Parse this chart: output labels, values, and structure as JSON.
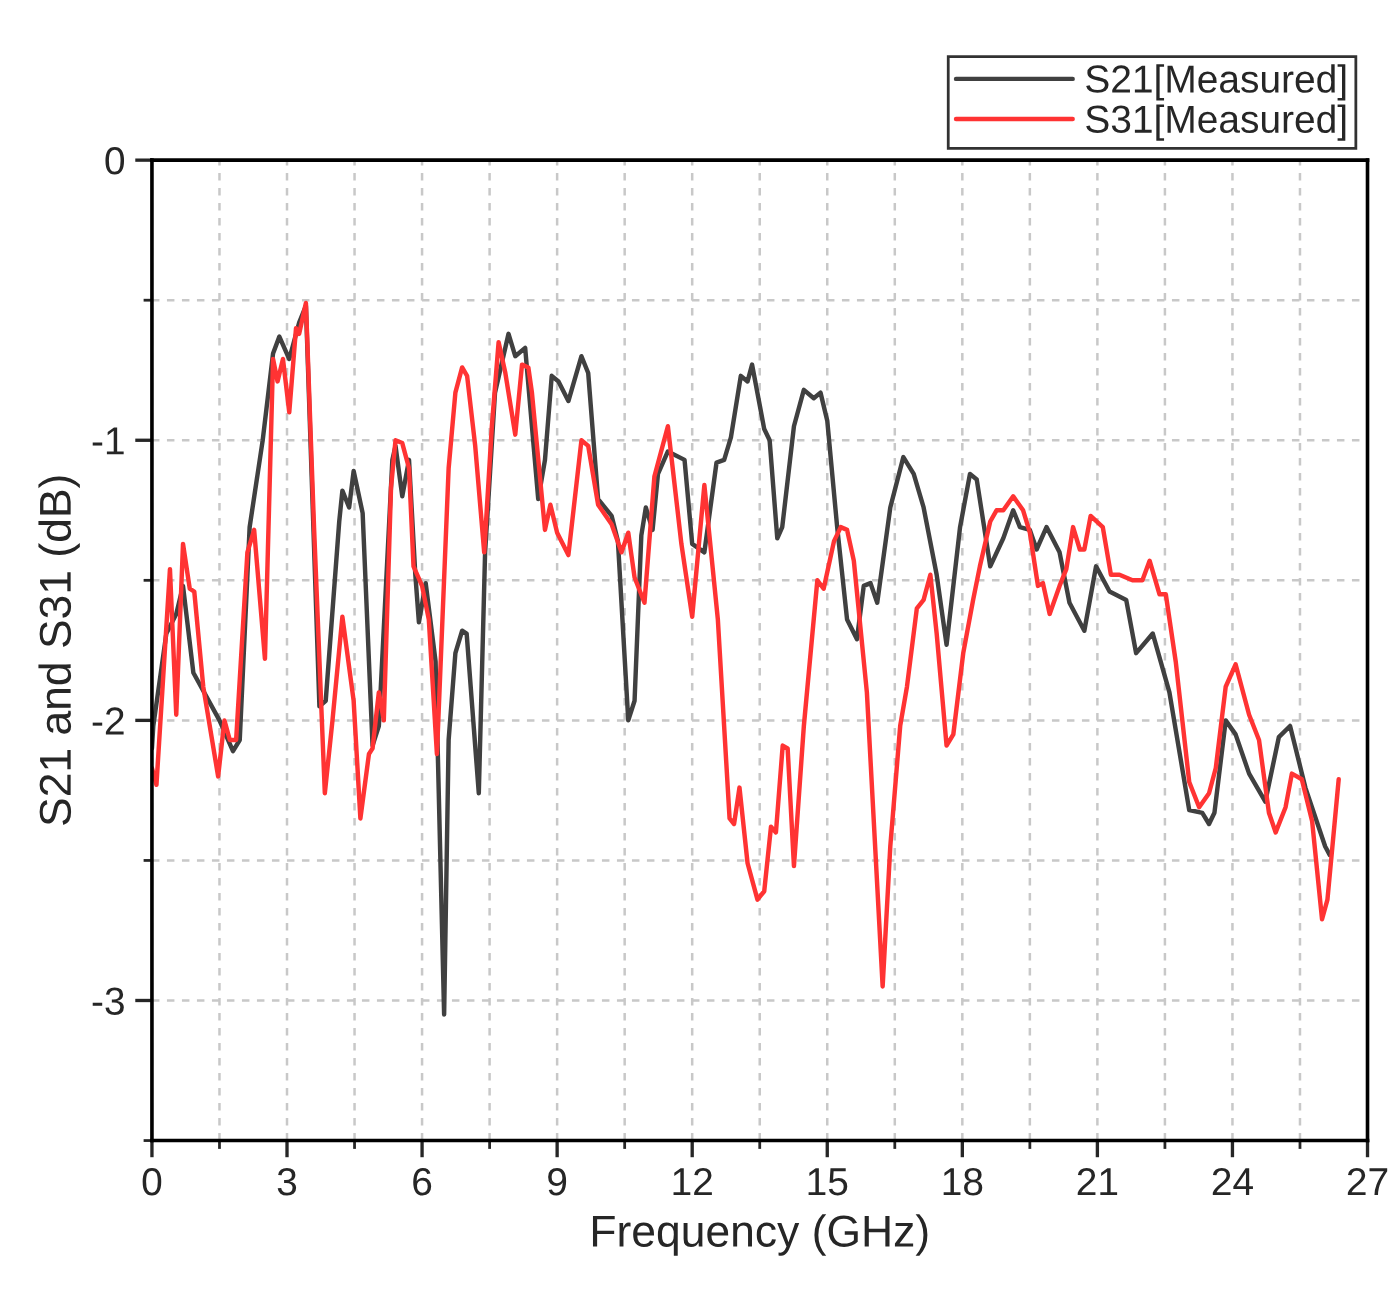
{
  "chart_data": {
    "type": "line",
    "xlabel": "Frequency (GHz)",
    "ylabel": "S21 and S31 (dB)",
    "xlim": [
      0,
      27
    ],
    "xticks": [
      0,
      3,
      6,
      9,
      12,
      15,
      18,
      21,
      24,
      27
    ],
    "ylim": [
      -3.5,
      0
    ],
    "yticks": [
      0,
      -1,
      -2,
      -3
    ],
    "grid": true,
    "legend": "top right",
    "marker": "none",
    "line_style": "solid",
    "series": [
      {
        "name": "S21[Measured]",
        "color": "#404040",
        "x": [
          0.0,
          0.03,
          0.32,
          0.54,
          0.69,
          0.92,
          1.5,
          1.8,
          1.95,
          2.17,
          2.46,
          2.69,
          2.83,
          3.05,
          3.27,
          3.42,
          3.72,
          3.86,
          4.16,
          4.23,
          4.38,
          4.48,
          4.68,
          4.9,
          5.04,
          5.34,
          5.41,
          5.56,
          5.71,
          5.85,
          5.93,
          6.08,
          6.3,
          6.49,
          6.59,
          6.74,
          6.89,
          6.99,
          7.26,
          7.4,
          7.62,
          7.92,
          8.07,
          8.29,
          8.58,
          8.73,
          8.88,
          9.03,
          9.25,
          9.54,
          9.69,
          9.91,
          10.21,
          10.35,
          10.58,
          10.72,
          10.87,
          10.97,
          11.12,
          11.24,
          11.46,
          11.83,
          12.0,
          12.27,
          12.54,
          12.71,
          12.86,
          13.08,
          13.23,
          13.33,
          13.6,
          13.72,
          13.89,
          14.0,
          14.26,
          14.48,
          14.7,
          14.85,
          15.0,
          15.22,
          15.44,
          15.66,
          15.81,
          15.96,
          16.11,
          16.4,
          16.69,
          16.92,
          17.14,
          17.43,
          17.65,
          17.95,
          18.17,
          18.32,
          18.62,
          18.91,
          19.13,
          19.28,
          19.5,
          19.65,
          19.87,
          20.16,
          20.38,
          20.71,
          20.97,
          21.27,
          21.64,
          21.86,
          22.23,
          22.6,
          23.04,
          23.33,
          23.48,
          23.6,
          23.85,
          24.07,
          24.37,
          24.73,
          25.03,
          25.28,
          25.62,
          26.06,
          26.16
        ],
        "values": [
          -2.1,
          -2.02,
          -1.69,
          -1.62,
          -1.52,
          -1.83,
          -2.0,
          -2.11,
          -2.07,
          -1.31,
          -1.0,
          -0.69,
          -0.63,
          -0.71,
          -0.58,
          -0.52,
          -1.95,
          -1.93,
          -1.29,
          -1.18,
          -1.24,
          -1.11,
          -1.26,
          -2.09,
          -2.02,
          -1.07,
          -1.02,
          -1.2,
          -1.07,
          -1.48,
          -1.65,
          -1.51,
          -1.79,
          -3.05,
          -2.07,
          -1.76,
          -1.68,
          -1.69,
          -2.26,
          -1.4,
          -0.83,
          -0.62,
          -0.7,
          -0.67,
          -1.21,
          -1.07,
          -0.77,
          -0.79,
          -0.86,
          -0.7,
          -0.76,
          -1.21,
          -1.27,
          -1.36,
          -2.0,
          -1.93,
          -1.34,
          -1.24,
          -1.32,
          -1.12,
          -1.04,
          -1.07,
          -1.37,
          -1.4,
          -1.08,
          -1.07,
          -0.99,
          -0.77,
          -0.79,
          -0.73,
          -0.96,
          -1.0,
          -1.35,
          -1.31,
          -0.95,
          -0.82,
          -0.85,
          -0.83,
          -0.93,
          -1.31,
          -1.64,
          -1.71,
          -1.52,
          -1.51,
          -1.58,
          -1.24,
          -1.06,
          -1.12,
          -1.24,
          -1.48,
          -1.73,
          -1.31,
          -1.12,
          -1.14,
          -1.45,
          -1.35,
          -1.25,
          -1.31,
          -1.32,
          -1.39,
          -1.31,
          -1.4,
          -1.58,
          -1.68,
          -1.45,
          -1.54,
          -1.57,
          -1.76,
          -1.69,
          -1.9,
          -2.32,
          -2.33,
          -2.37,
          -2.33,
          -2.0,
          -2.05,
          -2.19,
          -2.29,
          -2.06,
          -2.02,
          -2.24,
          -2.45,
          -2.48
        ]
      },
      {
        "name": "S31[Measured]",
        "color": "#ff3333",
        "x": [
          0.0,
          0.1,
          0.4,
          0.54,
          0.69,
          0.84,
          0.94,
          1.14,
          1.47,
          1.61,
          1.73,
          1.87,
          2.12,
          2.27,
          2.51,
          2.69,
          2.79,
          2.91,
          3.05,
          3.2,
          3.27,
          3.42,
          3.6,
          3.84,
          4.01,
          4.23,
          4.48,
          4.63,
          4.82,
          4.9,
          5.04,
          5.15,
          5.31,
          5.41,
          5.56,
          5.71,
          5.81,
          6.0,
          6.15,
          6.33,
          6.59,
          6.74,
          6.89,
          7.0,
          7.18,
          7.38,
          7.55,
          7.7,
          7.85,
          8.07,
          8.22,
          8.36,
          8.44,
          8.73,
          8.85,
          9.0,
          9.25,
          9.54,
          9.69,
          9.91,
          10.21,
          10.43,
          10.58,
          10.72,
          10.94,
          11.16,
          11.46,
          11.76,
          12.0,
          12.27,
          12.57,
          12.83,
          12.93,
          13.05,
          13.23,
          13.45,
          13.6,
          13.75,
          13.86,
          14.01,
          14.12,
          14.26,
          14.48,
          14.78,
          14.92,
          15.15,
          15.3,
          15.44,
          15.59,
          15.88,
          16.23,
          16.4,
          16.62,
          16.77,
          16.99,
          17.14,
          17.29,
          17.43,
          17.65,
          17.8,
          18.02,
          18.24,
          18.39,
          18.62,
          18.76,
          18.91,
          19.13,
          19.35,
          19.5,
          19.68,
          19.79,
          19.94,
          20.16,
          20.31,
          20.46,
          20.61,
          20.71,
          20.85,
          21.12,
          21.3,
          21.49,
          21.78,
          22.0,
          22.16,
          22.38,
          22.52,
          22.74,
          23.04,
          23.26,
          23.48,
          23.63,
          23.85,
          24.07,
          24.37,
          24.59,
          24.81,
          24.96,
          25.18,
          25.32,
          25.54,
          25.77,
          25.99,
          26.11,
          26.36
        ],
        "values": [
          -2.17,
          -2.23,
          -1.46,
          -1.98,
          -1.37,
          -1.53,
          -1.54,
          -1.88,
          -2.2,
          -2.0,
          -2.07,
          -2.07,
          -1.4,
          -1.32,
          -1.78,
          -0.71,
          -0.79,
          -0.71,
          -0.9,
          -0.6,
          -0.62,
          -0.51,
          -1.31,
          -2.26,
          -2.0,
          -1.63,
          -1.93,
          -2.35,
          -2.12,
          -2.1,
          -1.9,
          -2.0,
          -1.17,
          -1.0,
          -1.01,
          -1.1,
          -1.45,
          -1.52,
          -1.64,
          -2.12,
          -1.1,
          -0.83,
          -0.74,
          -0.77,
          -1.02,
          -1.4,
          -0.95,
          -0.65,
          -0.76,
          -0.98,
          -0.73,
          -0.74,
          -0.83,
          -1.32,
          -1.23,
          -1.33,
          -1.41,
          -1.0,
          -1.02,
          -1.23,
          -1.3,
          -1.4,
          -1.33,
          -1.49,
          -1.58,
          -1.13,
          -0.95,
          -1.37,
          -1.63,
          -1.16,
          -1.64,
          -2.35,
          -2.37,
          -2.24,
          -2.51,
          -2.64,
          -2.61,
          -2.38,
          -2.4,
          -2.09,
          -2.1,
          -2.52,
          -2.02,
          -1.5,
          -1.53,
          -1.36,
          -1.31,
          -1.32,
          -1.43,
          -1.9,
          -2.95,
          -2.45,
          -2.02,
          -1.88,
          -1.6,
          -1.57,
          -1.48,
          -1.69,
          -2.09,
          -2.05,
          -1.76,
          -1.57,
          -1.45,
          -1.29,
          -1.25,
          -1.25,
          -1.2,
          -1.25,
          -1.33,
          -1.52,
          -1.51,
          -1.62,
          -1.52,
          -1.46,
          -1.31,
          -1.39,
          -1.39,
          -1.27,
          -1.31,
          -1.48,
          -1.48,
          -1.5,
          -1.5,
          -1.43,
          -1.55,
          -1.55,
          -1.79,
          -2.22,
          -2.31,
          -2.26,
          -2.17,
          -1.88,
          -1.8,
          -1.98,
          -2.07,
          -2.33,
          -2.4,
          -2.31,
          -2.19,
          -2.21,
          -2.36,
          -2.71,
          -2.64,
          -2.21
        ]
      }
    ]
  }
}
